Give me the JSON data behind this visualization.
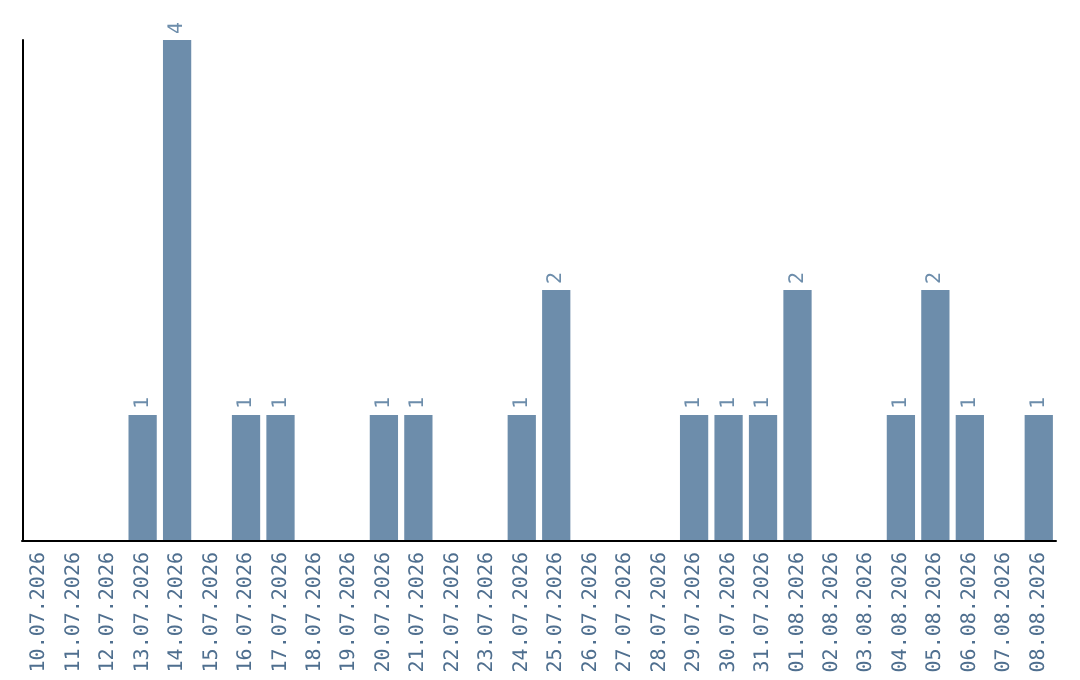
{
  "chart_data": {
    "type": "bar",
    "categories": [
      "10.07.2026",
      "11.07.2026",
      "12.07.2026",
      "13.07.2026",
      "14.07.2026",
      "15.07.2026",
      "16.07.2026",
      "17.07.2026",
      "18.07.2026",
      "19.07.2026",
      "20.07.2026",
      "21.07.2026",
      "22.07.2026",
      "23.07.2026",
      "24.07.2026",
      "25.07.2026",
      "26.07.2026",
      "27.07.2026",
      "28.07.2026",
      "29.07.2026",
      "30.07.2026",
      "31.07.2026",
      "01.08.2026",
      "02.08.2026",
      "03.08.2026",
      "04.08.2026",
      "05.08.2026",
      "06.08.2026",
      "07.08.2026",
      "08.08.2026"
    ],
    "values": [
      0,
      0,
      0,
      1,
      4,
      0,
      1,
      1,
      0,
      0,
      1,
      1,
      0,
      0,
      1,
      2,
      0,
      0,
      0,
      1,
      1,
      1,
      2,
      0,
      0,
      1,
      2,
      1,
      0,
      1
    ],
    "value_labels": [
      null,
      null,
      null,
      "1",
      "4",
      null,
      "1",
      "1",
      null,
      null,
      "1",
      "1",
      null,
      null,
      "1",
      "2",
      null,
      null,
      null,
      "1",
      "1",
      "1",
      "2",
      null,
      null,
      "1",
      "2",
      "1",
      null,
      "1"
    ],
    "color": "#6d8dab",
    "grid": false,
    "tick_labels": "x"
  }
}
